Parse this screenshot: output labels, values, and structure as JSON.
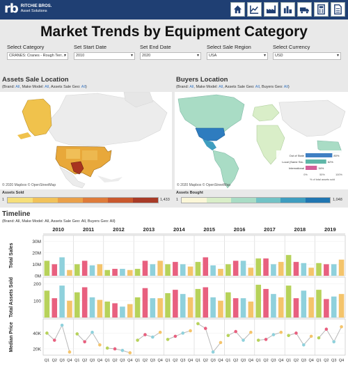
{
  "header": {
    "logo_mark": "rb",
    "logo_line1": "RITCHIE BROS.",
    "logo_line2": "Asset Solutions",
    "nav_icons": [
      "home-icon",
      "line-chart-icon",
      "factory-icon",
      "industry-icon",
      "truck-icon",
      "calculator-icon",
      "document-icon"
    ]
  },
  "page_title": "Market Trends by Equipment Category",
  "filters": [
    {
      "label": "Select Category",
      "value": "CRANES: Cranes - Rough Terr..."
    },
    {
      "label": "Set Start Date",
      "value": "2010"
    },
    {
      "label": "Set End Date",
      "value": "2020"
    },
    {
      "label": "Select Sale Region",
      "value": "USA"
    },
    {
      "label": "Select Currency",
      "value": "USD"
    }
  ],
  "assets_panel": {
    "title": "Assets Sale Location",
    "sub_prefix": "(Brand: ",
    "brand": "All",
    "make_model_label": ", Make Model: ",
    "make_model": "All",
    "assets_geo_label": ", Assets Sale Geo: ",
    "assets_geo": "All",
    "sub_suffix": ")",
    "attribution": "© 2020 Mapbox  © OpenStreetMap",
    "legend_title": "Assets Sold",
    "legend_min": "1",
    "legend_max": "1,433",
    "colors": [
      "#f6df7a",
      "#f1c25a",
      "#eaa049",
      "#de7b3a",
      "#c9582d",
      "#a83b27"
    ]
  },
  "buyers_panel": {
    "title": "Buyers Location",
    "sub_prefix": "(Brand: ",
    "brand": "All",
    "make_model_label": ", Make Model: ",
    "make_model": "All",
    "assets_geo_label": ", Assets Sale Geo: ",
    "assets_geo": "All",
    "buyers_geo_label": ", Buyers Geo: ",
    "buyers_geo": "All",
    "sub_suffix": ")",
    "attribution": "© 2020 Mapbox  © OpenStreetMap",
    "legend_title": "Assets Bought",
    "legend_min": "1",
    "legend_max": "1,048",
    "colors": [
      "#fbf7d8",
      "#d9eec8",
      "#a9dcc5",
      "#72c2c5",
      "#3f9dbf",
      "#2176b1"
    ],
    "inset": {
      "rows": [
        {
          "label": "Out of State",
          "value": 80,
          "text": "80%",
          "color": "#3f7fc3"
        },
        {
          "label": "Local (Same Sta..",
          "value": 62,
          "text": "62%",
          "color": "#5fb7a8"
        },
        {
          "label": "International",
          "value": 34,
          "text": "34%",
          "color": "#d3609a"
        }
      ],
      "ticks": [
        "0%",
        "50%",
        "100%"
      ],
      "caption": "% of total assets sold"
    }
  },
  "timeline": {
    "title": "Timeline",
    "sub": "(Brand: All, Make Model: All, Assets Sale Geo: All, Buyers Geo: All)"
  },
  "chart_data": {
    "type": "bar",
    "years": [
      "2010",
      "2011",
      "2012",
      "2013",
      "2014",
      "2015",
      "2016",
      "2017",
      "2018",
      "2019"
    ],
    "quarters": [
      "Q1",
      "Q2",
      "Q3",
      "Q4"
    ],
    "quarter_colors": [
      "#b7d25a",
      "#e8607f",
      "#8fd1dc",
      "#f4c46b"
    ],
    "panels": [
      {
        "ylabel": "Total Sales",
        "type": "bar",
        "yticks": [
          "30M",
          "20M",
          "10M",
          "0M"
        ],
        "ylim": [
          0,
          35
        ],
        "values": [
          [
            13,
            10,
            16,
            5
          ],
          [
            10,
            13,
            9,
            10
          ],
          [
            5,
            6,
            6,
            5
          ],
          [
            6,
            13,
            10,
            13
          ],
          [
            10,
            12,
            10,
            8
          ],
          [
            12,
            16,
            9,
            6
          ],
          [
            10,
            13,
            13,
            7
          ],
          [
            15,
            15,
            10,
            12
          ],
          [
            18,
            12,
            11,
            7
          ],
          [
            11,
            10,
            10,
            14
          ]
        ]
      },
      {
        "ylabel": "Total Assets Sold",
        "type": "bar",
        "yticks": [
          "200",
          "100"
        ],
        "ylim": [
          0,
          240
        ],
        "values": [
          [
            160,
            115,
            190,
            100
          ],
          [
            150,
            180,
            120,
            105
          ],
          [
            95,
            85,
            65,
            80
          ],
          [
            120,
            175,
            115,
            115
          ],
          [
            145,
            165,
            140,
            120
          ],
          [
            170,
            180,
            120,
            100
          ],
          [
            150,
            115,
            115,
            95
          ],
          [
            195,
            170,
            140,
            120
          ],
          [
            190,
            115,
            160,
            120
          ],
          [
            165,
            110,
            125,
            140
          ]
        ]
      },
      {
        "ylabel": "Median Price",
        "type": "line",
        "yticks": [
          "40K",
          "20K"
        ],
        "ylim": [
          12,
          58
        ],
        "values": [
          [
            40,
            31,
            50,
            16
          ],
          [
            39,
            29,
            41,
            25
          ],
          [
            21,
            20,
            18,
            15
          ],
          [
            31,
            38,
            35,
            41
          ],
          [
            32,
            36,
            40,
            43
          ],
          [
            52,
            46,
            16,
            28
          ],
          [
            37,
            42,
            31,
            41
          ],
          [
            31,
            32,
            38,
            41
          ],
          [
            37,
            40,
            25,
            36
          ],
          [
            34,
            45,
            29,
            48
          ]
        ]
      }
    ]
  }
}
